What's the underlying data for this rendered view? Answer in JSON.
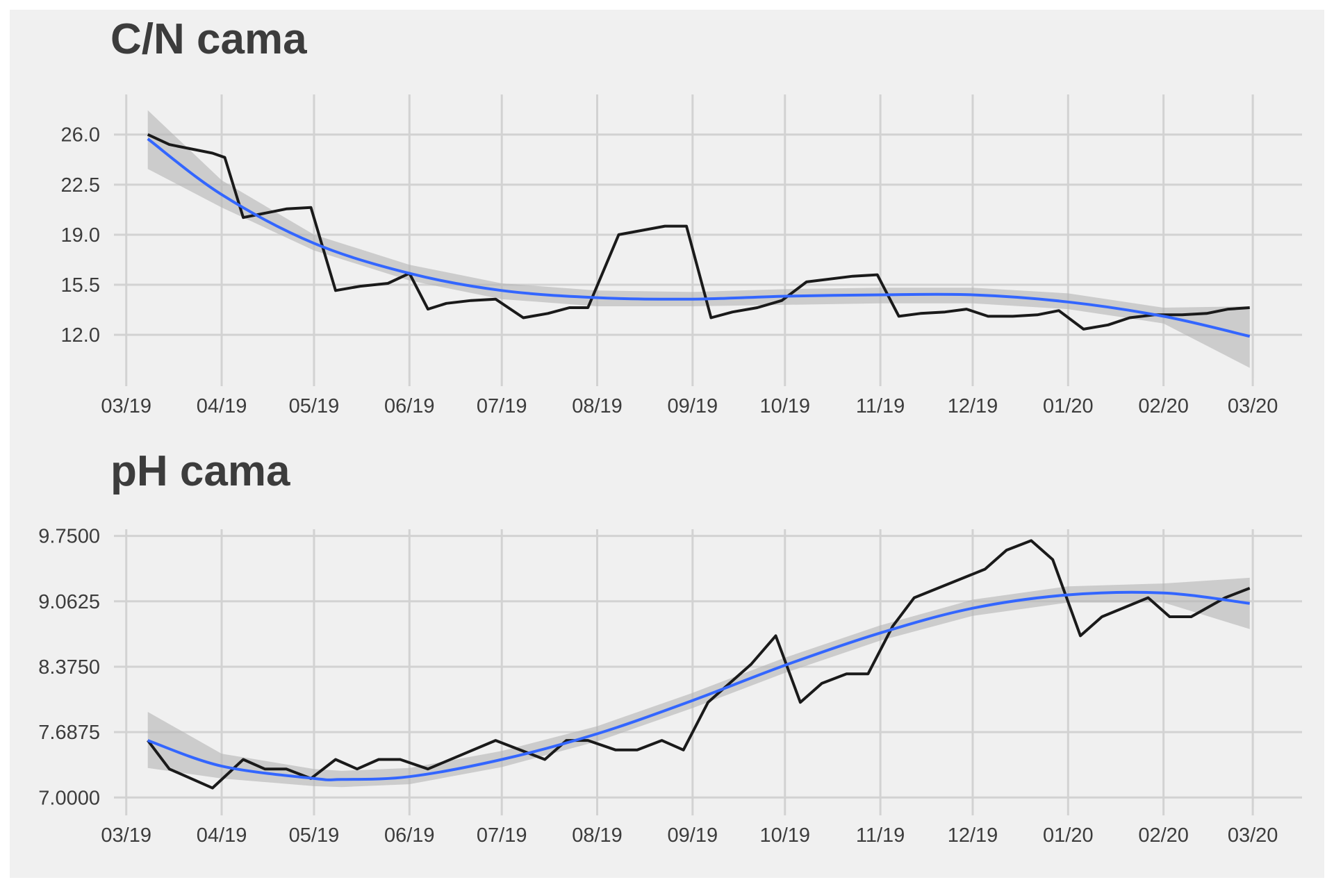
{
  "chart_data": [
    {
      "type": "line",
      "title": "C/N cama",
      "x_tick_labels": [
        "03/19",
        "04/19",
        "05/19",
        "06/19",
        "07/19",
        "08/19",
        "09/19",
        "10/19",
        "11/19",
        "12/19",
        "01/20",
        "02/20",
        "03/20"
      ],
      "x_tick_dates": [
        "2019-03-01",
        "2019-04-01",
        "2019-05-01",
        "2019-06-01",
        "2019-07-01",
        "2019-08-01",
        "2019-09-01",
        "2019-10-01",
        "2019-11-01",
        "2019-12-01",
        "2020-01-01",
        "2020-02-01",
        "2020-03-01"
      ],
      "y_ticks": [
        12.0,
        15.5,
        19.0,
        22.5,
        26.0
      ],
      "y_tick_labels": [
        "12.0",
        "15.5",
        "19.0",
        "22.5",
        "26.0"
      ],
      "xlim": [
        "2019-02-25",
        "2020-03-17"
      ],
      "ylim": [
        9.0,
        28.8
      ],
      "grid": true,
      "series": [
        {
          "values": [
            {
              "x": "2019-03-08",
              "y": 26.0
            },
            {
              "x": "2019-03-15",
              "y": 25.3
            },
            {
              "x": "2019-03-29",
              "y": 24.7
            },
            {
              "x": "2019-04-02",
              "y": 24.4
            },
            {
              "x": "2019-04-08",
              "y": 20.2
            },
            {
              "x": "2019-04-22",
              "y": 20.8
            },
            {
              "x": "2019-04-30",
              "y": 20.9
            },
            {
              "x": "2019-05-08",
              "y": 15.1
            },
            {
              "x": "2019-05-16",
              "y": 15.4
            },
            {
              "x": "2019-05-25",
              "y": 15.6
            },
            {
              "x": "2019-06-01",
              "y": 16.3
            },
            {
              "x": "2019-06-07",
              "y": 13.8
            },
            {
              "x": "2019-06-13",
              "y": 14.2
            },
            {
              "x": "2019-06-21",
              "y": 14.4
            },
            {
              "x": "2019-06-29",
              "y": 14.5
            },
            {
              "x": "2019-07-08",
              "y": 13.2
            },
            {
              "x": "2019-07-16",
              "y": 13.5
            },
            {
              "x": "2019-07-23",
              "y": 13.9
            },
            {
              "x": "2019-07-29",
              "y": 13.9
            },
            {
              "x": "2019-08-08",
              "y": 19.0
            },
            {
              "x": "2019-08-23",
              "y": 19.6
            },
            {
              "x": "2019-08-30",
              "y": 19.6
            },
            {
              "x": "2019-09-07",
              "y": 13.2
            },
            {
              "x": "2019-09-14",
              "y": 13.6
            },
            {
              "x": "2019-09-22",
              "y": 13.9
            },
            {
              "x": "2019-09-30",
              "y": 14.4
            },
            {
              "x": "2019-10-08",
              "y": 15.7
            },
            {
              "x": "2019-10-23",
              "y": 16.1
            },
            {
              "x": "2019-10-31",
              "y": 16.2
            },
            {
              "x": "2019-11-07",
              "y": 13.3
            },
            {
              "x": "2019-11-14",
              "y": 13.5
            },
            {
              "x": "2019-11-22",
              "y": 13.6
            },
            {
              "x": "2019-11-29",
              "y": 13.8
            },
            {
              "x": "2019-12-06",
              "y": 13.3
            },
            {
              "x": "2019-12-14",
              "y": 13.3
            },
            {
              "x": "2019-12-22",
              "y": 13.4
            },
            {
              "x": "2019-12-29",
              "y": 13.7
            },
            {
              "x": "2020-01-06",
              "y": 12.4
            },
            {
              "x": "2020-01-14",
              "y": 12.7
            },
            {
              "x": "2020-01-21",
              "y": 13.2
            },
            {
              "x": "2020-01-29",
              "y": 13.4
            },
            {
              "x": "2020-02-07",
              "y": 13.4
            },
            {
              "x": "2020-02-15",
              "y": 13.5
            },
            {
              "x": "2020-02-22",
              "y": 13.8
            },
            {
              "x": "2020-02-29",
              "y": 13.9
            }
          ]
        }
      ],
      "smooth": {
        "color": "#3366ff",
        "band_color": "#b4b4b4",
        "values": [
          {
            "x": "2019-03-08",
            "y": 25.7,
            "ymin": 23.6,
            "ymax": 27.7
          },
          {
            "x": "2019-04-01",
            "y": 21.8,
            "ymin": 20.9,
            "ymax": 22.8
          },
          {
            "x": "2019-05-01",
            "y": 18.4,
            "ymin": 17.9,
            "ymax": 19.0
          },
          {
            "x": "2019-06-01",
            "y": 16.3,
            "ymin": 15.8,
            "ymax": 16.9
          },
          {
            "x": "2019-07-01",
            "y": 15.1,
            "ymin": 14.5,
            "ymax": 15.6
          },
          {
            "x": "2019-08-01",
            "y": 14.6,
            "ymin": 14.0,
            "ymax": 15.1
          },
          {
            "x": "2019-09-01",
            "y": 14.5,
            "ymin": 14.0,
            "ymax": 15.0
          },
          {
            "x": "2019-10-01",
            "y": 14.7,
            "ymin": 14.1,
            "ymax": 15.2
          },
          {
            "x": "2019-11-01",
            "y": 14.8,
            "ymin": 14.2,
            "ymax": 15.3
          },
          {
            "x": "2019-12-01",
            "y": 14.8,
            "ymin": 14.2,
            "ymax": 15.3
          },
          {
            "x": "2020-01-01",
            "y": 14.3,
            "ymin": 13.8,
            "ymax": 14.9
          },
          {
            "x": "2020-02-01",
            "y": 13.3,
            "ymin": 12.8,
            "ymax": 13.9
          },
          {
            "x": "2020-02-29",
            "y": 11.9,
            "ymin": 9.7,
            "ymax": 14.0
          }
        ]
      }
    },
    {
      "type": "line",
      "title": "pH cama",
      "x_tick_labels": [
        "03/19",
        "04/19",
        "05/19",
        "06/19",
        "07/19",
        "08/19",
        "09/19",
        "10/19",
        "11/19",
        "12/19",
        "01/20",
        "02/20",
        "03/20"
      ],
      "x_tick_dates": [
        "2019-03-01",
        "2019-04-01",
        "2019-05-01",
        "2019-06-01",
        "2019-07-01",
        "2019-08-01",
        "2019-09-01",
        "2019-10-01",
        "2019-11-01",
        "2019-12-01",
        "2020-01-01",
        "2020-02-01",
        "2020-03-01"
      ],
      "y_ticks": [
        7.0,
        7.6875,
        8.375,
        9.0625,
        9.75
      ],
      "y_tick_labels": [
        "7.0000",
        "7.6875",
        "8.3750",
        "9.0625",
        "9.7500"
      ],
      "xlim": [
        "2019-02-25",
        "2020-03-17"
      ],
      "ylim": [
        6.9,
        9.82
      ],
      "grid": true,
      "series": [
        {
          "values": [
            {
              "x": "2019-03-08",
              "y": 7.6
            },
            {
              "x": "2019-03-15",
              "y": 7.3
            },
            {
              "x": "2019-03-29",
              "y": 7.1
            },
            {
              "x": "2019-04-08",
              "y": 7.4
            },
            {
              "x": "2019-04-15",
              "y": 7.3
            },
            {
              "x": "2019-04-22",
              "y": 7.3
            },
            {
              "x": "2019-04-30",
              "y": 7.2
            },
            {
              "x": "2019-05-08",
              "y": 7.4
            },
            {
              "x": "2019-05-15",
              "y": 7.3
            },
            {
              "x": "2019-05-22",
              "y": 7.4
            },
            {
              "x": "2019-05-29",
              "y": 7.4
            },
            {
              "x": "2019-06-07",
              "y": 7.3
            },
            {
              "x": "2019-06-29",
              "y": 7.6
            },
            {
              "x": "2019-07-15",
              "y": 7.4
            },
            {
              "x": "2019-07-22",
              "y": 7.6
            },
            {
              "x": "2019-07-29",
              "y": 7.6
            },
            {
              "x": "2019-08-07",
              "y": 7.5
            },
            {
              "x": "2019-08-14",
              "y": 7.5
            },
            {
              "x": "2019-08-22",
              "y": 7.6
            },
            {
              "x": "2019-08-29",
              "y": 7.5
            },
            {
              "x": "2019-09-06",
              "y": 8.0
            },
            {
              "x": "2019-09-20",
              "y": 8.4
            },
            {
              "x": "2019-09-28",
              "y": 8.7
            },
            {
              "x": "2019-10-06",
              "y": 8.0
            },
            {
              "x": "2019-10-13",
              "y": 8.2
            },
            {
              "x": "2019-10-21",
              "y": 8.3
            },
            {
              "x": "2019-10-28",
              "y": 8.3
            },
            {
              "x": "2019-11-05",
              "y": 8.8
            },
            {
              "x": "2019-11-12",
              "y": 9.1
            },
            {
              "x": "2019-12-05",
              "y": 9.4
            },
            {
              "x": "2019-12-12",
              "y": 9.6
            },
            {
              "x": "2019-12-20",
              "y": 9.7
            },
            {
              "x": "2019-12-27",
              "y": 9.5
            },
            {
              "x": "2020-01-05",
              "y": 8.7
            },
            {
              "x": "2020-01-12",
              "y": 8.9
            },
            {
              "x": "2020-01-27",
              "y": 9.1
            },
            {
              "x": "2020-02-03",
              "y": 8.9
            },
            {
              "x": "2020-02-10",
              "y": 8.9
            },
            {
              "x": "2020-02-21",
              "y": 9.1
            },
            {
              "x": "2020-02-29",
              "y": 9.2
            }
          ]
        }
      ],
      "smooth": {
        "color": "#3366ff",
        "band_color": "#b4b4b4",
        "values": [
          {
            "x": "2019-03-08",
            "y": 7.6,
            "ymin": 7.31,
            "ymax": 7.9
          },
          {
            "x": "2019-04-01",
            "y": 7.33,
            "ymin": 7.2,
            "ymax": 7.46
          },
          {
            "x": "2019-05-01",
            "y": 7.2,
            "ymin": 7.12,
            "ymax": 7.3
          },
          {
            "x": "2019-05-10",
            "y": 7.19,
            "ymin": 7.11,
            "ymax": 7.28
          },
          {
            "x": "2019-06-01",
            "y": 7.22,
            "ymin": 7.14,
            "ymax": 7.31
          },
          {
            "x": "2019-07-01",
            "y": 7.4,
            "ymin": 7.32,
            "ymax": 7.49
          },
          {
            "x": "2019-08-01",
            "y": 7.67,
            "ymin": 7.59,
            "ymax": 7.75
          },
          {
            "x": "2019-09-01",
            "y": 8.02,
            "ymin": 7.94,
            "ymax": 8.1
          },
          {
            "x": "2019-10-01",
            "y": 8.39,
            "ymin": 8.31,
            "ymax": 8.47
          },
          {
            "x": "2019-11-01",
            "y": 8.73,
            "ymin": 8.65,
            "ymax": 8.81
          },
          {
            "x": "2019-12-01",
            "y": 8.99,
            "ymin": 8.91,
            "ymax": 9.08
          },
          {
            "x": "2020-01-01",
            "y": 9.13,
            "ymin": 9.05,
            "ymax": 9.22
          },
          {
            "x": "2020-02-01",
            "y": 9.15,
            "ymin": 9.05,
            "ymax": 9.25
          },
          {
            "x": "2020-02-29",
            "y": 9.04,
            "ymin": 8.77,
            "ymax": 9.31
          }
        ]
      }
    }
  ]
}
